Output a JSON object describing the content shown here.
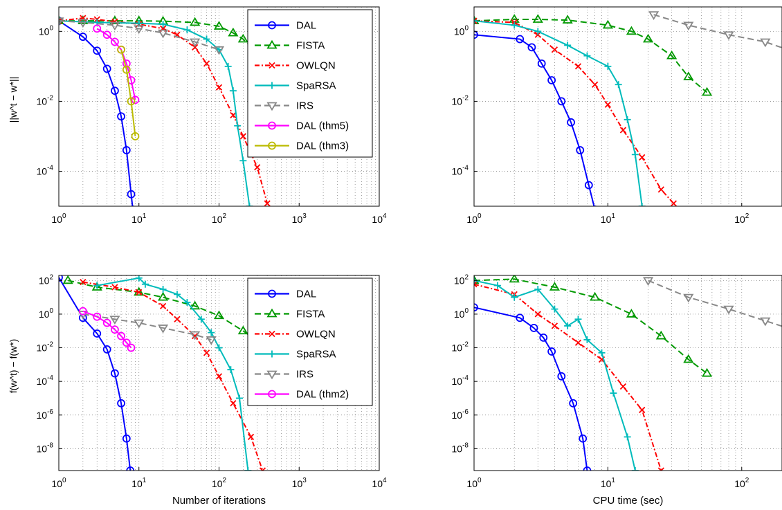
{
  "figure": {
    "style": {
      "background": "#ffffff",
      "grid_color": "#777777",
      "axis_color": "#000000"
    }
  },
  "chart_data": [
    {
      "type": "line",
      "panel": "top-left",
      "xlabel": "",
      "ylabel": "||w^t − w*||",
      "xscale": "log",
      "yscale": "log",
      "xlim": [
        1,
        10000
      ],
      "ylim": [
        1e-05,
        5
      ],
      "xticks": [
        1,
        10,
        100,
        1000,
        10000
      ],
      "yticks": [
        0.0001,
        0.01,
        1
      ],
      "grid": true,
      "legend": "top-right",
      "series": [
        {
          "name": "DAL",
          "color": "#0000ff",
          "dash": "solid",
          "marker": "circle",
          "points": [
            [
              1,
              2
            ],
            [
              2,
              0.7
            ],
            [
              3,
              0.28
            ],
            [
              4,
              0.085
            ],
            [
              5,
              0.02
            ],
            [
              6,
              0.0037
            ],
            [
              7,
              0.0004
            ],
            [
              8,
              2.2e-05
            ],
            [
              8.4,
              8e-06
            ]
          ]
        },
        {
          "name": "FISTA",
          "color": "#009900",
          "dash": "dashed",
          "marker": "triangle-up",
          "points": [
            [
              1,
              2
            ],
            [
              2,
              2
            ],
            [
              5,
              2
            ],
            [
              10,
              2
            ],
            [
              20,
              1.95
            ],
            [
              50,
              1.8
            ],
            [
              100,
              1.4
            ],
            [
              150,
              0.9
            ],
            [
              200,
              0.6
            ],
            [
              300,
              0.25
            ],
            [
              500,
              0.06
            ],
            [
              700,
              0.03
            ],
            [
              900,
              0.018
            ]
          ]
        },
        {
          "name": "OWLQN",
          "color": "#ff0000",
          "dash": "dashdot",
          "marker": "x",
          "points": [
            [
              1,
              2
            ],
            [
              2,
              2.4
            ],
            [
              3,
              2.2
            ],
            [
              5,
              1.9
            ],
            [
              10,
              1.6
            ],
            [
              20,
              1.2
            ],
            [
              30,
              0.8
            ],
            [
              50,
              0.35
            ],
            [
              70,
              0.12
            ],
            [
              100,
              0.025
            ],
            [
              150,
              0.004
            ],
            [
              200,
              0.001
            ],
            [
              300,
              0.00013
            ],
            [
              400,
              1.2e-05
            ]
          ]
        },
        {
          "name": "SpaRSA",
          "color": "#00bbbb",
          "dash": "solid",
          "marker": "plus",
          "points": [
            [
              1,
              2
            ],
            [
              3,
              1.8
            ],
            [
              10,
              1.7
            ],
            [
              20,
              1.6
            ],
            [
              40,
              1.1
            ],
            [
              70,
              0.6
            ],
            [
              100,
              0.3
            ],
            [
              130,
              0.1
            ],
            [
              150,
              0.02
            ],
            [
              170,
              0.002
            ],
            [
              200,
              0.0002
            ],
            [
              240,
              1e-05
            ]
          ]
        },
        {
          "name": "IRS",
          "color": "#888888",
          "dash": "dashed",
          "marker": "triangle-down",
          "points": [
            [
              1,
              2
            ],
            [
              2,
              1.8
            ],
            [
              5,
              1.5
            ],
            [
              10,
              1.2
            ],
            [
              20,
              0.9
            ],
            [
              50,
              0.5
            ],
            [
              100,
              0.3
            ]
          ]
        },
        {
          "name": "DAL (thm5)",
          "color": "#ff00ff",
          "dash": "solid",
          "marker": "circle",
          "points": [
            [
              3,
              1.2
            ],
            [
              4,
              0.8
            ],
            [
              5,
              0.5
            ],
            [
              6,
              0.3
            ],
            [
              7,
              0.12
            ],
            [
              8,
              0.04
            ],
            [
              9,
              0.011
            ]
          ]
        },
        {
          "name": "DAL (thm3)",
          "color": "#bbbb00",
          "dash": "solid",
          "marker": "circle",
          "points": [
            [
              6,
              0.3
            ],
            [
              7,
              0.08
            ],
            [
              8,
              0.01
            ],
            [
              9,
              0.001
            ]
          ]
        }
      ]
    },
    {
      "type": "line",
      "panel": "top-right",
      "xlabel": "",
      "ylabel": "",
      "xscale": "log",
      "yscale": "log",
      "xlim": [
        1,
        200
      ],
      "ylim": [
        1e-05,
        5
      ],
      "xticks": [
        1,
        10,
        100
      ],
      "yticks": [
        0.0001,
        0.01,
        1
      ],
      "grid": true,
      "series": [
        {
          "name": "DAL",
          "color": "#0000ff",
          "dash": "solid",
          "marker": "circle",
          "points": [
            [
              1,
              0.8
            ],
            [
              2.2,
              0.6
            ],
            [
              2.7,
              0.35
            ],
            [
              3.2,
              0.12
            ],
            [
              3.8,
              0.04
            ],
            [
              4.5,
              0.01
            ],
            [
              5.3,
              0.0025
            ],
            [
              6.2,
              0.0004
            ],
            [
              7.2,
              4e-05
            ],
            [
              8,
              8e-06
            ]
          ]
        },
        {
          "name": "FISTA",
          "color": "#009900",
          "dash": "dashed",
          "marker": "triangle-up",
          "points": [
            [
              1,
              2
            ],
            [
              2,
              2.2
            ],
            [
              3,
              2.2
            ],
            [
              5,
              2.1
            ],
            [
              10,
              1.5
            ],
            [
              15,
              1.0
            ],
            [
              20,
              0.6
            ],
            [
              30,
              0.2
            ],
            [
              40,
              0.05
            ],
            [
              55,
              0.018
            ]
          ]
        },
        {
          "name": "OWLQN",
          "color": "#ff0000",
          "dash": "dashdot",
          "marker": "x",
          "points": [
            [
              1,
              2
            ],
            [
              2,
              1.8
            ],
            [
              3,
              0.8
            ],
            [
              4,
              0.3
            ],
            [
              6,
              0.1
            ],
            [
              8,
              0.03
            ],
            [
              10,
              0.008
            ],
            [
              13,
              0.0015
            ],
            [
              18,
              0.00025
            ],
            [
              25,
              3e-05
            ],
            [
              31,
              1.2e-05
            ]
          ]
        },
        {
          "name": "SpaRSA",
          "color": "#00bbbb",
          "dash": "solid",
          "marker": "plus",
          "points": [
            [
              1,
              2
            ],
            [
              2,
              1.5
            ],
            [
              3,
              1.0
            ],
            [
              5,
              0.4
            ],
            [
              7,
              0.2
            ],
            [
              10,
              0.1
            ],
            [
              12,
              0.03
            ],
            [
              14,
              0.003
            ],
            [
              16,
              0.0003
            ],
            [
              18,
              1e-05
            ]
          ]
        },
        {
          "name": "IRS",
          "color": "#888888",
          "dash": "dashed",
          "marker": "triangle-down",
          "points": [
            [
              22,
              3
            ],
            [
              40,
              1.5
            ],
            [
              80,
              0.8
            ],
            [
              150,
              0.5
            ],
            [
              220,
              0.3
            ]
          ]
        }
      ]
    },
    {
      "type": "line",
      "panel": "bottom-left",
      "xlabel": "Number of iterations",
      "ylabel": "f(w^t) − f(w*)",
      "xscale": "log",
      "yscale": "log",
      "xlim": [
        1,
        10000
      ],
      "ylim": [
        5e-10,
        200
      ],
      "xticks": [
        1,
        10,
        100,
        1000,
        10000
      ],
      "yticks": [
        1e-08,
        1e-06,
        0.0001,
        0.01,
        1,
        100
      ],
      "grid": true,
      "legend": "top-right",
      "series": [
        {
          "name": "DAL",
          "color": "#0000ff",
          "dash": "solid",
          "marker": "circle",
          "points": [
            [
              1,
              150
            ],
            [
              2,
              0.6
            ],
            [
              3,
              0.07
            ],
            [
              4,
              0.008
            ],
            [
              5,
              0.0003
            ],
            [
              6,
              5e-06
            ],
            [
              7,
              4e-08
            ],
            [
              7.8,
              5e-10
            ]
          ]
        },
        {
          "name": "FISTA",
          "color": "#009900",
          "dash": "dashed",
          "marker": "triangle-up",
          "points": [
            [
              1.3,
              100
            ],
            [
              3,
              40
            ],
            [
              10,
              20
            ],
            [
              20,
              10
            ],
            [
              50,
              3
            ],
            [
              100,
              0.8
            ],
            [
              200,
              0.1
            ],
            [
              400,
              0.01
            ],
            [
              700,
              0.001
            ],
            [
              900,
              0.0003
            ]
          ]
        },
        {
          "name": "OWLQN",
          "color": "#ff0000",
          "dash": "dashdot",
          "marker": "x",
          "points": [
            [
              2,
              80
            ],
            [
              5,
              40
            ],
            [
              10,
              20
            ],
            [
              20,
              3
            ],
            [
              30,
              0.5
            ],
            [
              50,
              0.05
            ],
            [
              70,
              0.005
            ],
            [
              100,
              0.0002
            ],
            [
              150,
              5e-06
            ],
            [
              250,
              5e-08
            ],
            [
              350,
              5e-10
            ]
          ]
        },
        {
          "name": "SpaRSA",
          "color": "#00bbbb",
          "dash": "solid",
          "marker": "plus",
          "points": [
            [
              3,
              50
            ],
            [
              10,
              140
            ],
            [
              12,
              60
            ],
            [
              20,
              30
            ],
            [
              30,
              15
            ],
            [
              40,
              5
            ],
            [
              60,
              0.5
            ],
            [
              80,
              0.08
            ],
            [
              100,
              0.01
            ],
            [
              140,
              0.0005
            ],
            [
              180,
              1e-05
            ],
            [
              230,
              5e-10
            ]
          ]
        },
        {
          "name": "IRS",
          "color": "#888888",
          "dash": "dashed",
          "marker": "triangle-down",
          "points": [
            [
              2,
              1
            ],
            [
              5,
              0.5
            ],
            [
              10,
              0.3
            ],
            [
              20,
              0.15
            ],
            [
              50,
              0.06
            ],
            [
              80,
              0.03
            ]
          ]
        },
        {
          "name": "DAL (thm2)",
          "color": "#ff00ff",
          "dash": "solid",
          "marker": "circle",
          "points": [
            [
              2,
              1.5
            ],
            [
              3,
              0.7
            ],
            [
              4,
              0.3
            ],
            [
              5,
              0.12
            ],
            [
              6,
              0.05
            ],
            [
              7,
              0.02
            ],
            [
              8,
              0.01
            ]
          ]
        }
      ]
    },
    {
      "type": "line",
      "panel": "bottom-right",
      "xlabel": "CPU time (sec)",
      "ylabel": "",
      "xscale": "log",
      "yscale": "log",
      "xlim": [
        1,
        200
      ],
      "ylim": [
        5e-10,
        200
      ],
      "xticks": [
        1,
        10,
        100
      ],
      "yticks": [
        1e-08,
        1e-06,
        0.0001,
        0.01,
        1,
        100
      ],
      "grid": true,
      "series": [
        {
          "name": "DAL",
          "color": "#0000ff",
          "dash": "solid",
          "marker": "circle",
          "points": [
            [
              1,
              2.5
            ],
            [
              2.2,
              0.6
            ],
            [
              2.8,
              0.15
            ],
            [
              3.3,
              0.04
            ],
            [
              3.8,
              0.006
            ],
            [
              4.5,
              0.0002
            ],
            [
              5.5,
              5e-06
            ],
            [
              6.5,
              4e-08
            ],
            [
              7,
              5e-10
            ]
          ]
        },
        {
          "name": "FISTA",
          "color": "#009900",
          "dash": "dashed",
          "marker": "triangle-up",
          "points": [
            [
              1,
              100
            ],
            [
              2,
              120
            ],
            [
              4,
              40
            ],
            [
              8,
              10
            ],
            [
              15,
              1
            ],
            [
              25,
              0.05
            ],
            [
              40,
              0.002
            ],
            [
              55,
              0.0003
            ]
          ]
        },
        {
          "name": "OWLQN",
          "color": "#ff0000",
          "dash": "dashdot",
          "marker": "x",
          "points": [
            [
              1,
              60
            ],
            [
              2,
              15
            ],
            [
              3,
              1
            ],
            [
              4,
              0.2
            ],
            [
              6,
              0.02
            ],
            [
              9,
              0.002
            ],
            [
              13,
              5e-05
            ],
            [
              18,
              2e-06
            ],
            [
              25,
              5e-10
            ]
          ]
        },
        {
          "name": "SpaRSA",
          "color": "#00bbbb",
          "dash": "solid",
          "marker": "plus",
          "points": [
            [
              1,
              100
            ],
            [
              1.5,
              50
            ],
            [
              2,
              10
            ],
            [
              3,
              30
            ],
            [
              4,
              2
            ],
            [
              5,
              0.2
            ],
            [
              6,
              0.5
            ],
            [
              7,
              0.03
            ],
            [
              9,
              0.005
            ],
            [
              11,
              2e-05
            ],
            [
              14,
              5e-08
            ],
            [
              16,
              5e-10
            ]
          ]
        },
        {
          "name": "IRS",
          "color": "#888888",
          "dash": "dashed",
          "marker": "triangle-down",
          "points": [
            [
              20,
              100
            ],
            [
              40,
              10
            ],
            [
              80,
              2
            ],
            [
              150,
              0.4
            ],
            [
              220,
              0.15
            ]
          ]
        }
      ]
    }
  ]
}
